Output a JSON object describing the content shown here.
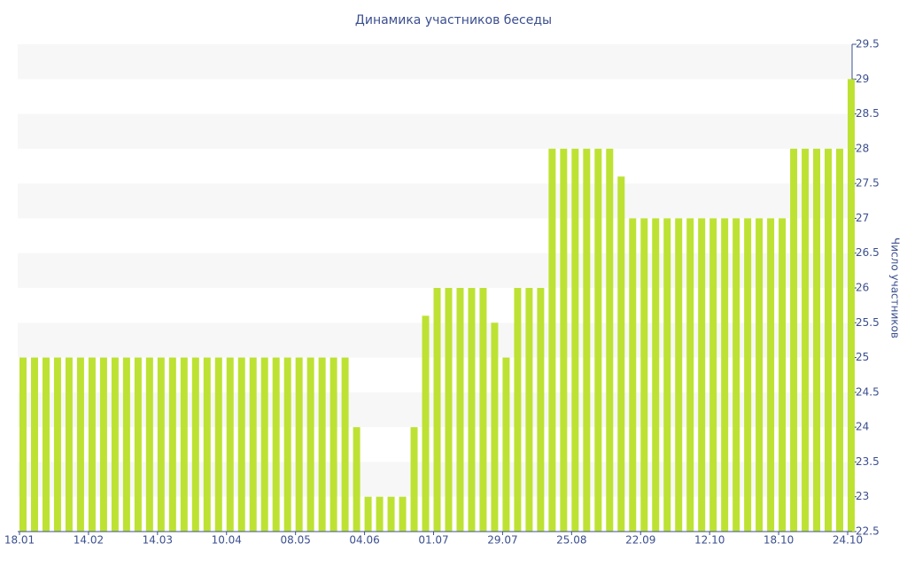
{
  "chart_data": {
    "type": "bar",
    "title": "Динамика участников беседы",
    "y_label": "Число участников",
    "categories": [
      "18.01",
      null,
      null,
      null,
      null,
      null,
      "14.02",
      null,
      null,
      null,
      null,
      null,
      "14.03",
      null,
      null,
      null,
      null,
      null,
      "10.04",
      null,
      null,
      null,
      null,
      null,
      "08.05",
      null,
      null,
      null,
      null,
      null,
      "04.06",
      null,
      null,
      null,
      null,
      null,
      "01.07",
      null,
      null,
      null,
      null,
      null,
      "29.07",
      null,
      null,
      null,
      null,
      null,
      "25.08",
      null,
      null,
      null,
      null,
      null,
      "22.09",
      null,
      null,
      null,
      null,
      null,
      "12.10",
      null,
      null,
      null,
      null,
      null,
      "18.10",
      null,
      null,
      null,
      null,
      null,
      "24.10"
    ],
    "values": [
      25,
      25,
      25,
      25,
      25,
      25,
      25,
      25,
      25,
      25,
      25,
      25,
      25,
      25,
      25,
      25,
      25,
      25,
      25,
      25,
      25,
      25,
      25,
      25,
      25,
      25,
      25,
      25,
      25,
      24,
      23,
      23,
      23,
      23,
      24,
      25.6,
      26,
      26,
      26,
      26,
      26,
      25.5,
      25,
      26,
      26,
      26,
      28,
      28,
      28,
      28,
      28,
      28,
      27.6,
      27,
      27,
      27,
      27,
      27,
      27,
      27,
      27,
      27,
      27,
      27,
      27,
      27,
      27,
      28,
      28,
      28,
      28,
      28,
      29
    ],
    "color": "#bde233",
    "ylim": [
      22.5,
      29.5
    ],
    "yticks": [
      22.5,
      23,
      23.5,
      24,
      24.5,
      25,
      25.5,
      26,
      26.5,
      27,
      27.5,
      28,
      28.5,
      29,
      29.5
    ],
    "y_axis_side": "right",
    "grid": true
  }
}
